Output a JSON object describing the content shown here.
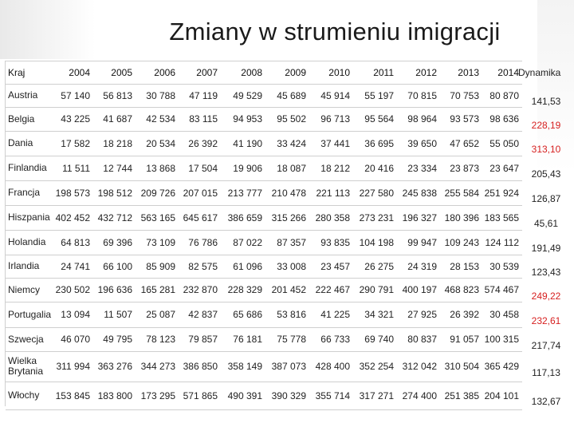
{
  "title": "Zmiany w strumieniu imigracji",
  "headers": [
    "Kraj",
    "2004",
    "2005",
    "2006",
    "2007",
    "2008",
    "2009",
    "2010",
    "2011",
    "2012",
    "2013",
    "2014",
    "Dynamika"
  ],
  "rows": [
    {
      "country": "Austria",
      "values": [
        "57 140",
        "56 813",
        "30 788",
        "47 119",
        "49 529",
        "45 689",
        "45 914",
        "55 197",
        "70 815",
        "70 753",
        "80 870"
      ],
      "dynamika": "141,53",
      "dyn_high": false
    },
    {
      "country": "Belgia",
      "values": [
        "43 225",
        "41 687",
        "42 534",
        "83 115",
        "94 953",
        "95 502",
        "96 713",
        "95 564",
        "98 964",
        "93 573",
        "98 636"
      ],
      "dynamika": "228,19",
      "dyn_high": true
    },
    {
      "country": "Dania",
      "values": [
        "17 582",
        "18 218",
        "20 534",
        "26 392",
        "41 190",
        "33 424",
        "37 441",
        "36 695",
        "39 650",
        "47 652",
        "55 050"
      ],
      "dynamika": "313,10",
      "dyn_high": true
    },
    {
      "country": "Finlandia",
      "values": [
        "11 511",
        "12 744",
        "13 868",
        "17 504",
        "19 906",
        "18 087",
        "18 212",
        "20 416",
        "23 334",
        "23 873",
        "23 647"
      ],
      "dynamika": "205,43",
      "dyn_high": false
    },
    {
      "country": "Francja",
      "values": [
        "198 573",
        "198 512",
        "209 726",
        "207 015",
        "213 777",
        "210 478",
        "221 113",
        "227 580",
        "245 838",
        "255 584",
        "251 924"
      ],
      "dynamika": "126,87",
      "dyn_high": false
    },
    {
      "country": "Hiszpania",
      "values": [
        "402 452",
        "432 712",
        "563 165",
        "645 617",
        "386 659",
        "315 266",
        "280 358",
        "273 231",
        "196 327",
        "180 396",
        "183 565"
      ],
      "dynamika": "45,61",
      "dyn_high": false
    },
    {
      "country": "Holandia",
      "values": [
        "64 813",
        "69 396",
        "73 109",
        "76 786",
        "87 022",
        "87 357",
        "93 835",
        "104 198",
        "99 947",
        "109 243",
        "124 112"
      ],
      "dynamika": "191,49",
      "dyn_high": false
    },
    {
      "country": "Irlandia",
      "values": [
        "24 741",
        "66 100",
        "85 909",
        "82 575",
        "61 096",
        "33 008",
        "23 457",
        "26 275",
        "24 319",
        "28 153",
        "30 539"
      ],
      "dynamika": "123,43",
      "dyn_high": false
    },
    {
      "country": "Niemcy",
      "values": [
        "230 502",
        "196 636",
        "165 281",
        "232 870",
        "228 329",
        "201 452",
        "222 467",
        "290 791",
        "400 197",
        "468 823",
        "574 467"
      ],
      "dynamika": "249,22",
      "dyn_high": true
    },
    {
      "country": "Portugalia",
      "values": [
        "13 094",
        "11 507",
        "25 087",
        "42 837",
        "65 686",
        "53 816",
        "41 225",
        "34 321",
        "27 925",
        "26 392",
        "30 458"
      ],
      "dynamika": "232,61",
      "dyn_high": true
    },
    {
      "country": "Szwecja",
      "values": [
        "46 070",
        "49 795",
        "78 123",
        "79 857",
        "76 181",
        "75 778",
        "66 733",
        "69 740",
        "80 837",
        "91 057",
        "100 315"
      ],
      "dynamika": "217,74",
      "dyn_high": false
    },
    {
      "country": "Wielka Brytania",
      "values": [
        "311 994",
        "363 276",
        "344 273",
        "386 850",
        "358 149",
        "387 073",
        "428 400",
        "352 254",
        "312 042",
        "310 504",
        "365 429"
      ],
      "dynamika": "117,13",
      "dyn_high": false
    },
    {
      "country": "Włochy",
      "values": [
        "153 845",
        "183 800",
        "173 295",
        "571 865",
        "490 391",
        "390 329",
        "355 714",
        "317 271",
        "274 400",
        "251 385",
        "204 101"
      ],
      "dynamika": "132,67",
      "dyn_high": false
    }
  ],
  "colors": {
    "highlight": "#d61f1f",
    "text": "#222222",
    "grid": "#cfcfcf"
  }
}
